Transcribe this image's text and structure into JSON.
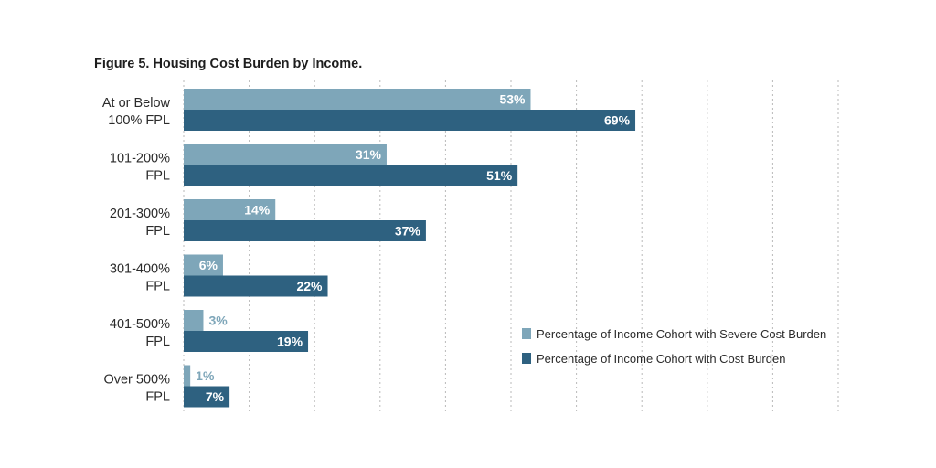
{
  "chart_data": {
    "type": "bar",
    "orientation": "horizontal",
    "title": "Figure 5. Housing Cost Burden by Income.",
    "categories": [
      [
        "At or Below",
        "100% FPL"
      ],
      [
        "101-200%",
        "FPL"
      ],
      [
        "201-300%",
        "FPL"
      ],
      [
        "301-400%",
        "FPL"
      ],
      [
        "401-500%",
        "FPL"
      ],
      [
        "Over 500%",
        "FPL"
      ]
    ],
    "series": [
      {
        "name": "Percentage of Income Cohort with Severe Cost Burden",
        "color": "#7ea6b9",
        "values": [
          53,
          31,
          14,
          6,
          3,
          1
        ],
        "labels": [
          "53%",
          "31%",
          "14%",
          "6%",
          "3%",
          "1%"
        ]
      },
      {
        "name": "Percentage of Income Cohort with Cost Burden",
        "color": "#2e6180",
        "values": [
          69,
          51,
          37,
          22,
          19,
          7
        ],
        "labels": [
          "69%",
          "51%",
          "37%",
          "22%",
          "19%",
          "7%"
        ]
      }
    ],
    "xlim": [
      0,
      100
    ],
    "grid": true,
    "legend_position": "bottom-right"
  }
}
